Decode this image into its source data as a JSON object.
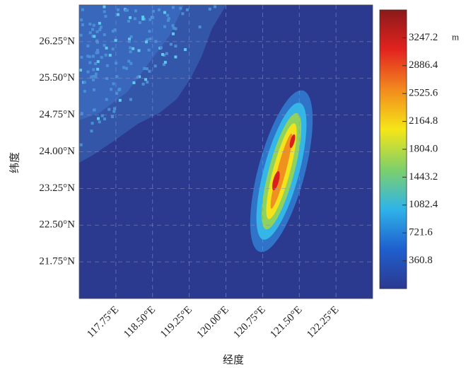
{
  "chart_data": {
    "type": "heatmap",
    "xlabel": "经度",
    "ylabel": "纬度",
    "xlim": [
      117,
      123
    ],
    "xticks": [
      {
        "value": 117.75,
        "label": "117.75°E"
      },
      {
        "value": 118.5,
        "label": "118.50°E"
      },
      {
        "value": 119.25,
        "label": "119.25°E"
      },
      {
        "value": 120,
        "label": "120.00°E"
      },
      {
        "value": 120.75,
        "label": "120.75°E"
      },
      {
        "value": 121.5,
        "label": "121.50°E"
      },
      {
        "value": 122.25,
        "label": "122.25°E"
      }
    ],
    "ylim": [
      21,
      27
    ],
    "yticks": [
      {
        "value": 26.25,
        "label": "26.25°N"
      },
      {
        "value": 25.5,
        "label": "25.50°N"
      },
      {
        "value": 24.75,
        "label": "24.75°N"
      },
      {
        "value": 24,
        "label": "24.00°N"
      },
      {
        "value": 23.25,
        "label": "23.25°N"
      },
      {
        "value": 22.5,
        "label": "22.50°N"
      },
      {
        "value": 21.75,
        "label": "21.75°N"
      }
    ],
    "grid": true,
    "colorbar_lim": [
      0,
      3608
    ],
    "colorbar_ticks": [
      360.8,
      721.6,
      1082.4,
      1443.2,
      {
        "value": 1804,
        "label": "1804.0"
      },
      2164.8,
      2525.6,
      2886.4,
      3247.2
    ],
    "colorbar_unit": "m",
    "colormap": [
      "#2b3990",
      "#1f5fcf",
      "#2fb4e8",
      "#7fd06a",
      "#f5e617",
      "#f28a1e",
      "#e3231f",
      "#8b1a1a"
    ]
  }
}
